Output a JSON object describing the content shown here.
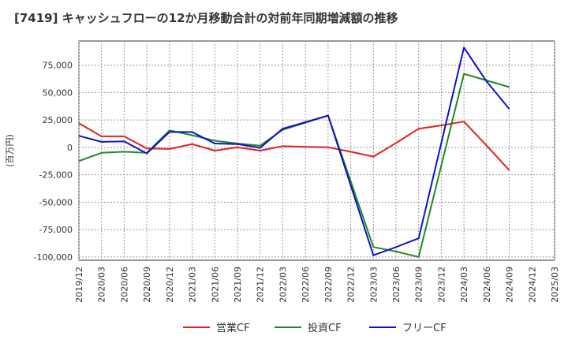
{
  "chart_data": {
    "type": "line",
    "title": "[7419]  キャッシュフローの12か月移動合計の対前年同期増減額の推移",
    "ylabel": "(百万円)",
    "xlabel": "",
    "ylim": [
      -103000,
      97000
    ],
    "yticks": [
      75000,
      50000,
      25000,
      0,
      -25000,
      -50000,
      -75000,
      -100000
    ],
    "ytick_labels": [
      "75,000",
      "50,000",
      "25,000",
      "0",
      "-25,000",
      "-50,000",
      "-75,000",
      "-100,000"
    ],
    "categories": [
      "2019/12",
      "2020/03",
      "2020/06",
      "2020/09",
      "2020/12",
      "2021/03",
      "2021/06",
      "2021/09",
      "2021/12",
      "2022/03",
      "2022/06",
      "2022/09",
      "2022/12",
      "2023/03",
      "2023/06",
      "2023/09",
      "2023/12",
      "2024/03",
      "2024/06",
      "2024/09",
      "2024/12",
      "2025/03"
    ],
    "grid": true,
    "legend_position": "bottom",
    "series": [
      {
        "name": "営業CF",
        "color": "#dd2222",
        "values": [
          22000,
          10000,
          10000,
          -1000,
          -1500,
          3000,
          -3000,
          0,
          -3000,
          1000,
          500,
          0,
          -4000,
          -8500,
          4000,
          17000,
          20000,
          23500,
          1500,
          -21000,
          null,
          null
        ]
      },
      {
        "name": "投資CF",
        "color": "#228822",
        "values": [
          -12500,
          -5000,
          -4000,
          -5000,
          15500,
          11000,
          6000,
          3500,
          1500,
          16000,
          null,
          29000,
          null,
          -91000,
          -95000,
          -100000,
          null,
          67000,
          61000,
          55000,
          null,
          null
        ]
      },
      {
        "name": "フリーCF",
        "color": "#1111cc",
        "values": [
          10500,
          5000,
          5500,
          -5500,
          14000,
          14000,
          3500,
          3000,
          -500,
          17000,
          23000,
          29000,
          null,
          -98500,
          -91000,
          -83000,
          null,
          91000,
          60000,
          35000,
          null,
          null
        ]
      }
    ]
  }
}
